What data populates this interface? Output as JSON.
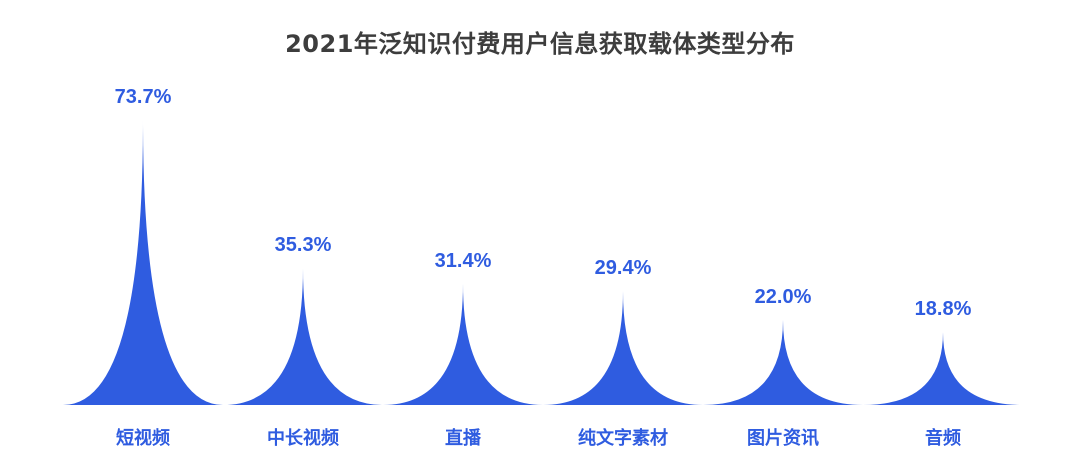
{
  "chart_data": {
    "type": "bar",
    "style": "pictorial-spike",
    "title": "2021年泛知识付费用户信息获取载体类型分布",
    "xlabel": "",
    "ylabel": "",
    "ylim": [
      0,
      80
    ],
    "grid": false,
    "legend": null,
    "color": "#2f5ce0",
    "categories": [
      "短视频",
      "中长视频",
      "直播",
      "纯文字素材",
      "图片资讯",
      "音频"
    ],
    "values": [
      73.7,
      35.3,
      31.4,
      29.4,
      22.0,
      18.8
    ],
    "labels": [
      "73.7%",
      "35.3%",
      "31.4%",
      "29.4%",
      "22.0%",
      "18.8%"
    ]
  }
}
